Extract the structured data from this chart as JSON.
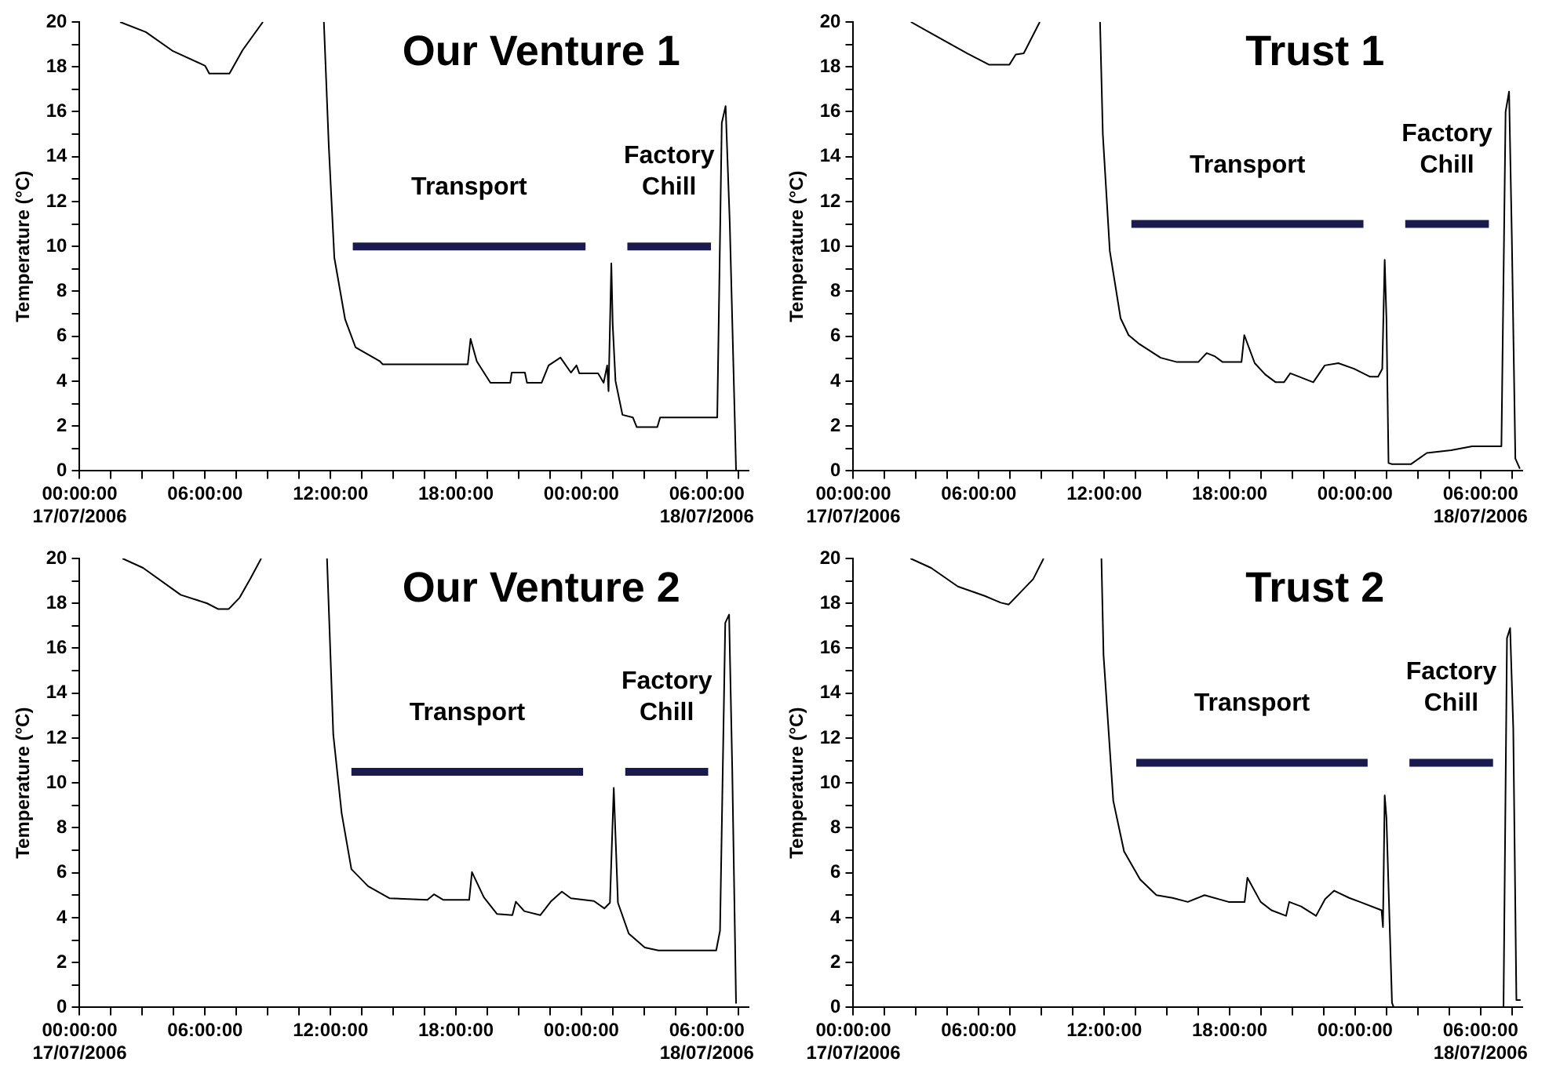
{
  "chart_data": [
    {
      "type": "line",
      "title": "Our Venture 1",
      "ylabel": "Temperature (°C)",
      "xlim": [
        "2006-07-17T00:00",
        "2006-07-18T08:00"
      ],
      "ylim": [
        0,
        20
      ],
      "xticks": [
        {
          "value": "2006-07-17T00:00",
          "label": "00:00:00\n17/07/2006"
        },
        {
          "value": "2006-07-17T01:30",
          "label": null
        },
        {
          "value": "2006-07-17T03:00",
          "label": null
        },
        {
          "value": "2006-07-17T04:30",
          "label": null
        },
        {
          "value": "2006-07-17T06:00",
          "label": "06:00:00"
        },
        {
          "value": "2006-07-17T07:30",
          "label": null
        },
        {
          "value": "2006-07-17T09:00",
          "label": null
        },
        {
          "value": "2006-07-17T10:30",
          "label": null
        },
        {
          "value": "2006-07-17T12:00",
          "label": "12:00:00"
        },
        {
          "value": "2006-07-17T13:30",
          "label": null
        },
        {
          "value": "2006-07-17T15:00",
          "label": null
        },
        {
          "value": "2006-07-17T16:30",
          "label": null
        },
        {
          "value": "2006-07-17T18:00",
          "label": "18:00:00"
        },
        {
          "value": "2006-07-17T19:30",
          "label": null
        },
        {
          "value": "2006-07-17T21:00",
          "label": null
        },
        {
          "value": "2006-07-17T22:30",
          "label": null
        },
        {
          "value": "2006-07-18T00:00",
          "label": "00:00:00"
        },
        {
          "value": "2006-07-18T01:30",
          "label": null
        },
        {
          "value": "2006-07-18T03:00",
          "label": null
        },
        {
          "value": "2006-07-18T04:30",
          "label": null
        },
        {
          "value": "2006-07-18T06:00",
          "label": "06:00:00\n18/07/2006"
        },
        {
          "value": "2006-07-18T07:30",
          "label": null
        }
      ],
      "yticks": [
        0,
        {
          "value": 1,
          "label": null
        },
        2,
        {
          "value": 3,
          "label": null
        },
        4,
        {
          "value": 5,
          "label": null
        },
        6,
        {
          "value": 7,
          "label": null
        },
        8,
        {
          "value": 9,
          "label": null
        },
        10,
        {
          "value": 11,
          "label": null
        },
        12,
        {
          "value": 13,
          "label": null
        },
        14,
        {
          "value": 15,
          "label": null
        },
        16,
        {
          "value": 17,
          "label": null
        },
        18,
        {
          "value": 19,
          "label": null
        },
        20
      ],
      "grid": false,
      "legend": false,
      "marker": "none",
      "series": [
        {
          "color": "#000000",
          "x": [
            "2006-07-17T01:56",
            "2006-07-17T03:10",
            "2006-07-17T04:28",
            "2006-07-17T06:00",
            "2006-07-17T06:12",
            "2006-07-17T07:10",
            "2006-07-17T07:48",
            "2006-07-17T08:46",
            "2006-07-17T10:00",
            "2006-07-17T11:41",
            "2006-07-17T11:55",
            "2006-07-17T12:11",
            "2006-07-17T12:42",
            "2006-07-17T13:12",
            "2006-07-17T14:22",
            "2006-07-17T14:30",
            "2006-07-17T18:34",
            "2006-07-17T18:42",
            "2006-07-17T19:00",
            "2006-07-17T19:39",
            "2006-07-17T20:36",
            "2006-07-17T20:40",
            "2006-07-17T21:18",
            "2006-07-17T21:24",
            "2006-07-17T22:06",
            "2006-07-17T22:26",
            "2006-07-17T23:00",
            "2006-07-17T23:30",
            "2006-07-17T23:46",
            "2006-07-17T23:54",
            "2006-07-18T00:48",
            "2006-07-18T01:04",
            "2006-07-18T01:14",
            "2006-07-18T01:18",
            "2006-07-18T01:26",
            "2006-07-18T01:30",
            "2006-07-18T01:38",
            "2006-07-18T01:58",
            "2006-07-18T02:28",
            "2006-07-18T02:39",
            "2006-07-18T03:38",
            "2006-07-18T03:46",
            "2006-07-18T06:30",
            "2006-07-18T06:43",
            "2006-07-18T06:54",
            "2006-07-18T07:06",
            "2006-07-18T07:24"
          ],
          "values": [
            20,
            19.55,
            18.7,
            18.05,
            17.7,
            17.7,
            18.75,
            20,
            null,
            20,
            14.5,
            9.5,
            6.75,
            5.5,
            4.88,
            4.75,
            4.75,
            5.88,
            4.88,
            3.93,
            3.93,
            4.38,
            4.38,
            3.93,
            3.93,
            4.7,
            5.05,
            4.38,
            4.7,
            4.35,
            4.35,
            3.93,
            4.7,
            3.55,
            9.25,
            6.5,
            4.0,
            2.5,
            2.38,
            1.95,
            1.95,
            2.38,
            2.38,
            15.5,
            16.25,
            11,
            0.05
          ]
        },
        {
          "name": "Transport",
          "color": "#1a1a4e",
          "x": [
            "2006-07-17T13:04",
            "2006-07-18T00:12"
          ],
          "values": [
            10,
            10
          ]
        },
        {
          "name": "Factory Chill",
          "color": "#1a1a4e",
          "x": [
            "2006-07-18T02:12",
            "2006-07-18T06:12"
          ],
          "values": [
            10,
            10
          ]
        }
      ]
    },
    {
      "type": "line",
      "title": "Trust 1",
      "ylabel": "Temperature (°C)",
      "xlim": [
        "2006-07-17T00:00",
        "2006-07-18T08:00"
      ],
      "ylim": [
        0,
        20
      ],
      "xticks": [
        {
          "value": "2006-07-17T00:00",
          "label": "00:00:00\n17/07/2006"
        },
        {
          "value": "2006-07-17T01:30",
          "label": null
        },
        {
          "value": "2006-07-17T03:00",
          "label": null
        },
        {
          "value": "2006-07-17T04:30",
          "label": null
        },
        {
          "value": "2006-07-17T06:00",
          "label": "06:00:00"
        },
        {
          "value": "2006-07-17T07:30",
          "label": null
        },
        {
          "value": "2006-07-17T09:00",
          "label": null
        },
        {
          "value": "2006-07-17T10:30",
          "label": null
        },
        {
          "value": "2006-07-17T12:00",
          "label": "12:00:00"
        },
        {
          "value": "2006-07-17T13:30",
          "label": null
        },
        {
          "value": "2006-07-17T15:00",
          "label": null
        },
        {
          "value": "2006-07-17T16:30",
          "label": null
        },
        {
          "value": "2006-07-17T18:00",
          "label": "18:00:00"
        },
        {
          "value": "2006-07-17T19:30",
          "label": null
        },
        {
          "value": "2006-07-17T21:00",
          "label": null
        },
        {
          "value": "2006-07-17T22:30",
          "label": null
        },
        {
          "value": "2006-07-18T00:00",
          "label": "00:00:00"
        },
        {
          "value": "2006-07-18T01:30",
          "label": null
        },
        {
          "value": "2006-07-18T03:00",
          "label": null
        },
        {
          "value": "2006-07-18T04:30",
          "label": null
        },
        {
          "value": "2006-07-18T06:00",
          "label": "06:00:00\n18/07/2006"
        },
        {
          "value": "2006-07-18T07:30",
          "label": null
        }
      ],
      "yticks": [
        0,
        {
          "value": 1,
          "label": null
        },
        2,
        {
          "value": 3,
          "label": null
        },
        4,
        {
          "value": 5,
          "label": null
        },
        6,
        {
          "value": 7,
          "label": null
        },
        8,
        {
          "value": 9,
          "label": null
        },
        10,
        {
          "value": 11,
          "label": null
        },
        12,
        {
          "value": 13,
          "label": null
        },
        14,
        {
          "value": 15,
          "label": null
        },
        16,
        {
          "value": 17,
          "label": null
        },
        18,
        {
          "value": 19,
          "label": null
        },
        20
      ],
      "grid": false,
      "legend": false,
      "marker": "none",
      "series": [
        {
          "color": "#000000",
          "x": [
            "2006-07-17T02:45",
            "2006-07-17T03:54",
            "2006-07-17T05:27",
            "2006-07-17T06:29",
            "2006-07-17T07:28",
            "2006-07-17T07:46",
            "2006-07-17T08:09",
            "2006-07-17T08:55",
            "2006-07-17T10:00",
            "2006-07-17T11:48",
            "2006-07-17T11:56",
            "2006-07-17T12:16",
            "2006-07-17T12:47",
            "2006-07-17T13:10",
            "2006-07-17T13:41",
            "2006-07-17T14:42",
            "2006-07-17T15:29",
            "2006-07-17T16:30",
            "2006-07-17T16:54",
            "2006-07-17T17:18",
            "2006-07-17T17:40",
            "2006-07-17T18:34",
            "2006-07-17T18:42",
            "2006-07-17T19:12",
            "2006-07-17T19:42",
            "2006-07-17T20:12",
            "2006-07-17T20:36",
            "2006-07-17T20:54",
            "2006-07-17T22:00",
            "2006-07-17T22:33",
            "2006-07-17T23:12",
            "2006-07-17T23:57",
            "2006-07-18T00:42",
            "2006-07-18T01:06",
            "2006-07-18T01:18",
            "2006-07-18T01:25",
            "2006-07-18T01:30",
            "2006-07-18T01:36",
            "2006-07-18T01:46",
            "2006-07-18T02:40",
            "2006-07-18T03:26",
            "2006-07-18T04:36",
            "2006-07-18T05:36",
            "2006-07-18T07:00",
            "2006-07-18T07:12",
            "2006-07-18T07:22",
            "2006-07-18T07:30",
            "2006-07-18T07:40",
            "2006-07-18T07:53"
          ],
          "values": [
            20,
            19.4,
            18.6,
            18.1,
            18.1,
            18.55,
            18.6,
            20,
            null,
            20,
            15,
            9.8,
            6.8,
            6.05,
            5.65,
            5.04,
            4.85,
            4.85,
            5.25,
            5.1,
            4.85,
            4.85,
            6.05,
            4.8,
            4.3,
            3.95,
            3.95,
            4.35,
            3.95,
            4.7,
            4.8,
            4.55,
            4.2,
            4.2,
            4.55,
            9.4,
            6.8,
            0.35,
            0.3,
            0.3,
            0.8,
            0.92,
            1.1,
            1.1,
            16,
            16.9,
            10.3,
            0.55,
            0.1
          ]
        },
        {
          "name": "Transport",
          "color": "#1a1a4e",
          "x": [
            "2006-07-17T13:18",
            "2006-07-18T00:24"
          ],
          "values": [
            11,
            11
          ]
        },
        {
          "name": "Factory Chill",
          "color": "#1a1a4e",
          "x": [
            "2006-07-18T02:24",
            "2006-07-18T06:24"
          ],
          "values": [
            11,
            11
          ]
        }
      ]
    },
    {
      "type": "line",
      "title": "Our Venture 2",
      "ylabel": "Temperature (°C)",
      "xlim": [
        "2006-07-17T00:00",
        "2006-07-18T08:00"
      ],
      "ylim": [
        0,
        20
      ],
      "xticks": [
        {
          "value": "2006-07-17T00:00",
          "label": "00:00:00\n17/07/2006"
        },
        {
          "value": "2006-07-17T01:30",
          "label": null
        },
        {
          "value": "2006-07-17T03:00",
          "label": null
        },
        {
          "value": "2006-07-17T04:30",
          "label": null
        },
        {
          "value": "2006-07-17T06:00",
          "label": "06:00:00"
        },
        {
          "value": "2006-07-17T07:30",
          "label": null
        },
        {
          "value": "2006-07-17T09:00",
          "label": null
        },
        {
          "value": "2006-07-17T10:30",
          "label": null
        },
        {
          "value": "2006-07-17T12:00",
          "label": "12:00:00"
        },
        {
          "value": "2006-07-17T13:30",
          "label": null
        },
        {
          "value": "2006-07-17T15:00",
          "label": null
        },
        {
          "value": "2006-07-17T16:30",
          "label": null
        },
        {
          "value": "2006-07-17T18:00",
          "label": "18:00:00"
        },
        {
          "value": "2006-07-17T19:30",
          "label": null
        },
        {
          "value": "2006-07-17T21:00",
          "label": null
        },
        {
          "value": "2006-07-17T22:30",
          "label": null
        },
        {
          "value": "2006-07-18T00:00",
          "label": "00:00:00"
        },
        {
          "value": "2006-07-18T01:30",
          "label": null
        },
        {
          "value": "2006-07-18T03:00",
          "label": null
        },
        {
          "value": "2006-07-18T04:30",
          "label": null
        },
        {
          "value": "2006-07-18T06:00",
          "label": "06:00:00\n18/07/2006"
        },
        {
          "value": "2006-07-18T07:30",
          "label": null
        }
      ],
      "yticks": [
        0,
        {
          "value": 1,
          "label": null
        },
        2,
        {
          "value": 3,
          "label": null
        },
        4,
        {
          "value": 5,
          "label": null
        },
        6,
        {
          "value": 7,
          "label": null
        },
        8,
        {
          "value": 9,
          "label": null
        },
        10,
        {
          "value": 11,
          "label": null
        },
        12,
        {
          "value": 13,
          "label": null
        },
        14,
        {
          "value": 15,
          "label": null
        },
        16,
        {
          "value": 17,
          "label": null
        },
        18,
        {
          "value": 19,
          "label": null
        },
        20
      ],
      "grid": false,
      "legend": false,
      "marker": "none",
      "series": [
        {
          "color": "#000000",
          "x": [
            "2006-07-17T02:03",
            "2006-07-17T03:02",
            "2006-07-17T04:50",
            "2006-07-17T06:06",
            "2006-07-17T06:37",
            "2006-07-17T07:08",
            "2006-07-17T07:39",
            "2006-07-17T08:10",
            "2006-07-17T08:41",
            "2006-07-17T10:00",
            "2006-07-17T11:50",
            "2006-07-17T12:08",
            "2006-07-17T12:32",
            "2006-07-17T13:00",
            "2006-07-17T13:48",
            "2006-07-17T14:50",
            "2006-07-17T16:38",
            "2006-07-17T16:57",
            "2006-07-17T17:24",
            "2006-07-17T18:38",
            "2006-07-17T18:46",
            "2006-07-17T19:20",
            "2006-07-17T19:58",
            "2006-07-17T20:42",
            "2006-07-17T20:52",
            "2006-07-17T21:16",
            "2006-07-17T22:02",
            "2006-07-17T22:32",
            "2006-07-17T23:04",
            "2006-07-17T23:30",
            "2006-07-18T00:36",
            "2006-07-18T01:06",
            "2006-07-18T01:22",
            "2006-07-18T01:33",
            "2006-07-18T01:45",
            "2006-07-18T02:16",
            "2006-07-18T03:02",
            "2006-07-18T03:41",
            "2006-07-18T06:27",
            "2006-07-18T06:38",
            "2006-07-18T06:53",
            "2006-07-18T07:04",
            "2006-07-18T07:13",
            "2006-07-18T07:24"
          ],
          "values": [
            20,
            19.58,
            18.38,
            18.0,
            17.75,
            17.75,
            18.25,
            19.1,
            20,
            null,
            20,
            12.15,
            8.65,
            6.16,
            5.4,
            4.86,
            4.79,
            5.04,
            4.79,
            4.79,
            6.03,
            4.91,
            4.16,
            4.11,
            4.71,
            4.29,
            4.11,
            4.71,
            5.16,
            4.86,
            4.74,
            4.41,
            4.66,
            9.78,
            4.66,
            3.29,
            2.67,
            2.54,
            2.54,
            3.42,
            17.13,
            17.5,
            10.65,
            0.17
          ]
        },
        {
          "name": "Transport",
          "color": "#1a1a4e",
          "x": [
            "2006-07-17T13:00",
            "2006-07-18T00:05"
          ],
          "values": [
            10.5,
            10.5
          ]
        },
        {
          "name": "Factory Chill",
          "color": "#1a1a4e",
          "x": [
            "2006-07-18T02:06",
            "2006-07-18T06:04"
          ],
          "values": [
            10.5,
            10.5
          ]
        }
      ]
    },
    {
      "type": "line",
      "title": "Trust 2",
      "ylabel": "Temperature (°C)",
      "xlim": [
        "2006-07-17T00:00",
        "2006-07-18T08:00"
      ],
      "ylim": [
        0,
        20
      ],
      "xticks": [
        {
          "value": "2006-07-17T00:00",
          "label": "00:00:00\n17/07/2006"
        },
        {
          "value": "2006-07-17T01:30",
          "label": null
        },
        {
          "value": "2006-07-17T03:00",
          "label": null
        },
        {
          "value": "2006-07-17T04:30",
          "label": null
        },
        {
          "value": "2006-07-17T06:00",
          "label": "06:00:00"
        },
        {
          "value": "2006-07-17T07:30",
          "label": null
        },
        {
          "value": "2006-07-17T09:00",
          "label": null
        },
        {
          "value": "2006-07-17T10:30",
          "label": null
        },
        {
          "value": "2006-07-17T12:00",
          "label": "12:00:00"
        },
        {
          "value": "2006-07-17T13:30",
          "label": null
        },
        {
          "value": "2006-07-17T15:00",
          "label": null
        },
        {
          "value": "2006-07-17T16:30",
          "label": null
        },
        {
          "value": "2006-07-17T18:00",
          "label": "18:00:00"
        },
        {
          "value": "2006-07-17T19:30",
          "label": null
        },
        {
          "value": "2006-07-17T21:00",
          "label": null
        },
        {
          "value": "2006-07-17T22:30",
          "label": null
        },
        {
          "value": "2006-07-18T00:00",
          "label": "00:00:00"
        },
        {
          "value": "2006-07-18T01:30",
          "label": null
        },
        {
          "value": "2006-07-18T03:00",
          "label": null
        },
        {
          "value": "2006-07-18T04:30",
          "label": null
        },
        {
          "value": "2006-07-18T06:00",
          "label": "06:00:00\n18/07/2006"
        },
        {
          "value": "2006-07-18T07:30",
          "label": null
        }
      ],
      "yticks": [
        0,
        {
          "value": 1,
          "label": null
        },
        2,
        {
          "value": 3,
          "label": null
        },
        4,
        {
          "value": 5,
          "label": null
        },
        6,
        {
          "value": 7,
          "label": null
        },
        8,
        {
          "value": 9,
          "label": null
        },
        10,
        {
          "value": 11,
          "label": null
        },
        12,
        {
          "value": 13,
          "label": null
        },
        14,
        {
          "value": 15,
          "label": null
        },
        16,
        {
          "value": 17,
          "label": null
        },
        18,
        {
          "value": 19,
          "label": null
        },
        20
      ],
      "grid": false,
      "legend": false,
      "marker": "none",
      "series": [
        {
          "color": "#000000",
          "x": [
            "2006-07-17T02:44",
            "2006-07-17T03:43",
            "2006-07-17T05:00",
            "2006-07-17T06:17",
            "2006-07-17T07:03",
            "2006-07-17T07:26",
            "2006-07-17T08:05",
            "2006-07-17T08:36",
            "2006-07-17T09:06",
            "2006-07-17T10:00",
            "2006-07-17T11:52",
            "2006-07-17T11:58",
            "2006-07-17T12:26",
            "2006-07-17T12:57",
            "2006-07-17T13:43",
            "2006-07-17T14:30",
            "2006-07-17T15:16",
            "2006-07-17T16:00",
            "2006-07-17T16:48",
            "2006-07-17T17:57",
            "2006-07-17T18:43",
            "2006-07-17T18:51",
            "2006-07-17T19:29",
            "2006-07-17T20:00",
            "2006-07-17T20:42",
            "2006-07-17T20:51",
            "2006-07-17T21:25",
            "2006-07-17T22:08",
            "2006-07-17T22:34",
            "2006-07-17T23:00",
            "2006-07-17T23:43",
            "2006-07-18T00:14",
            "2006-07-18T01:16",
            "2006-07-18T01:20",
            "2006-07-18T01:25",
            "2006-07-18T01:30",
            "2006-07-18T01:46",
            "2006-07-18T01:51",
            "2006-07-18T07:06",
            "2006-07-18T07:16",
            "2006-07-18T07:25",
            "2006-07-18T07:34",
            "2006-07-18T07:43",
            "2006-07-18T07:55"
          ],
          "values": [
            20,
            19.58,
            18.75,
            18.33,
            18.03,
            17.95,
            18.58,
            19.08,
            20,
            null,
            20,
            15.7,
            9.2,
            6.95,
            5.7,
            5.0,
            4.88,
            4.7,
            5.0,
            4.7,
            4.7,
            5.78,
            4.7,
            4.33,
            4.08,
            4.7,
            4.5,
            4.08,
            4.83,
            5.2,
            4.88,
            4.7,
            4.33,
            3.58,
            9.45,
            8.45,
            0.2,
            0,
            0,
            16.45,
            16.9,
            12.45,
            0.33,
            0.33
          ]
        },
        {
          "name": "Transport",
          "color": "#1a1a4e",
          "x": [
            "2006-07-17T13:32",
            "2006-07-18T00:36"
          ],
          "values": [
            10.9,
            10.9
          ]
        },
        {
          "name": "Factory Chill",
          "color": "#1a1a4e",
          "x": [
            "2006-07-18T02:36",
            "2006-07-18T06:36"
          ],
          "values": [
            10.9,
            10.9
          ]
        }
      ]
    }
  ]
}
